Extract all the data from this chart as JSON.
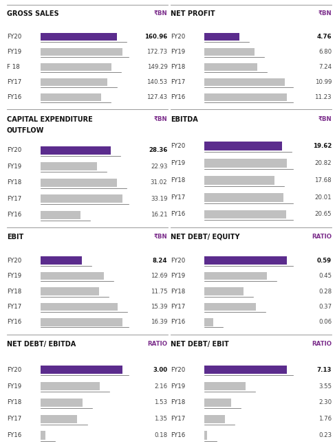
{
  "panels": [
    {
      "title": "GROSS SALES",
      "unit": "₹BN",
      "years": [
        "FY20",
        "FY19",
        "F 18",
        "FY17",
        "FY16"
      ],
      "values": [
        160.96,
        172.73,
        149.29,
        140.53,
        127.43
      ],
      "max_val": 172.73,
      "two_line_title": false
    },
    {
      "title": "NET PROFIT",
      "unit": "₹BN",
      "years": [
        "FY20",
        "FY19",
        "FY18",
        "FY17",
        "FY16"
      ],
      "values": [
        4.76,
        6.8,
        7.24,
        10.99,
        11.23
      ],
      "max_val": 11.23,
      "two_line_title": false
    },
    {
      "title": "CAPITAL EXPENDITURE\nOUTFLOW",
      "unit": "₹BN",
      "years": [
        "FY20",
        "FY19",
        "FY18",
        "FY17",
        "FY16"
      ],
      "values": [
        28.36,
        22.93,
        31.02,
        33.19,
        16.21
      ],
      "max_val": 33.19,
      "two_line_title": true
    },
    {
      "title": "EBITDA",
      "unit": "₹BN",
      "years": [
        "FY20",
        "FY19",
        "FY18",
        "FY17",
        "FY16"
      ],
      "values": [
        19.62,
        20.82,
        17.68,
        20.01,
        20.65
      ],
      "max_val": 20.82,
      "two_line_title": false
    },
    {
      "title": "EBIT",
      "unit": "₹BN",
      "years": [
        "FY20",
        "FY19",
        "FY18",
        "FY17",
        "FY16"
      ],
      "values": [
        8.24,
        12.69,
        11.75,
        15.39,
        16.39
      ],
      "max_val": 16.39,
      "two_line_title": false
    },
    {
      "title": "NET DEBT/ EQUITY",
      "unit": "RATIO",
      "years": [
        "FY20",
        "FY19",
        "FY18",
        "FY17",
        "FY16"
      ],
      "values": [
        0.59,
        0.45,
        0.28,
        0.37,
        0.06
      ],
      "max_val": 0.59,
      "two_line_title": false
    },
    {
      "title": "NET DEBT/ EBITDA",
      "unit": "RATIO",
      "years": [
        "FY20",
        "FY19",
        "FY18",
        "FY17",
        "FY16"
      ],
      "values": [
        3.0,
        2.16,
        1.53,
        1.35,
        0.18
      ],
      "max_val": 3.0,
      "two_line_title": false
    },
    {
      "title": "NET DEBT/ EBIT",
      "unit": "RATIO",
      "years": [
        "FY20",
        "FY19",
        "FY18",
        "FY17",
        "FY16"
      ],
      "values": [
        7.13,
        3.55,
        2.3,
        1.76,
        0.23
      ],
      "max_val": 7.13,
      "two_line_title": false
    }
  ],
  "purple_color": "#5B2C8D",
  "gray_color": "#C0C0C0",
  "title_color": "#111111",
  "unit_color": "#7B2D8B",
  "year_color": "#333333",
  "value_color_fy20": "#111111",
  "value_color_other": "#444444",
  "bg_color": "#FFFFFF",
  "grid_cols": 2,
  "grid_rows": 4,
  "bar_height": 0.52,
  "title_fontsize": 7.0,
  "year_fontsize": 6.2,
  "value_fontsize": 6.2,
  "unit_fontsize": 6.2
}
